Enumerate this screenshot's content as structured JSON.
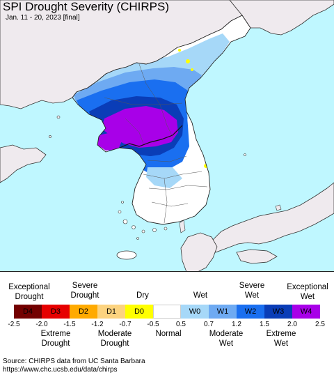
{
  "header": {
    "title": "SPI Drought Severity (CHIRPS)",
    "subtitle": "Jan. 11 - 20, 2023 [final]"
  },
  "colors": {
    "sea": "#bff7ff",
    "foreign_land": "#efeaee",
    "normal": "#ffffff",
    "W0": "#a6d8f8",
    "W1": "#6eaaf2",
    "W2": "#1a6ff0",
    "W3": "#0a3db7",
    "W4": "#a800e8",
    "D0": "#ffff00"
  },
  "legend": {
    "top_labels": [
      {
        "text": "Exceptional\nDrought"
      },
      {
        "text": "Severe\nDrought"
      },
      {
        "text": "Dry"
      },
      {
        "text": "Wet"
      },
      {
        "text": "Severe\nWet"
      },
      {
        "text": "Exceptional\nWet"
      }
    ],
    "categories": [
      {
        "label": "D4",
        "color": "#730000",
        "text_color": "#000000"
      },
      {
        "label": "D3",
        "color": "#e60000",
        "text_color": "#000000"
      },
      {
        "label": "D2",
        "color": "#ffaa00",
        "text_color": "#000000"
      },
      {
        "label": "D1",
        "color": "#fcd37f",
        "text_color": "#000000"
      },
      {
        "label": "D0",
        "color": "#ffff00",
        "text_color": "#000000"
      },
      {
        "label": "",
        "color": "#ffffff",
        "text_color": "#000000"
      },
      {
        "label": "W0",
        "color": "#a6d8f8",
        "text_color": "#000000"
      },
      {
        "label": "W1",
        "color": "#6eaaf2",
        "text_color": "#000000"
      },
      {
        "label": "W2",
        "color": "#1a6ff0",
        "text_color": "#000000"
      },
      {
        "label": "W3",
        "color": "#0a3db7",
        "text_color": "#000000"
      },
      {
        "label": "W4",
        "color": "#a800e8",
        "text_color": "#000000"
      }
    ],
    "ticks": [
      "-2.5",
      "-2.0",
      "-1.5",
      "-1.2",
      "-0.7",
      "-0.5",
      "0.5",
      "0.7",
      "1.2",
      "1.5",
      "2.0",
      "2.5"
    ],
    "bottom_labels": [
      {
        "text": "Extreme\nDrought"
      },
      {
        "text": "Moderate\nDrought"
      },
      {
        "text": "Normal"
      },
      {
        "text": "Moderate\nWet"
      },
      {
        "text": "Extreme\nWet"
      }
    ]
  },
  "footer": {
    "source_line1": "Source: CHIRPS data from UC Santa Barbara",
    "source_line2": "https://www.chc.ucsb.edu/data/chirps"
  }
}
